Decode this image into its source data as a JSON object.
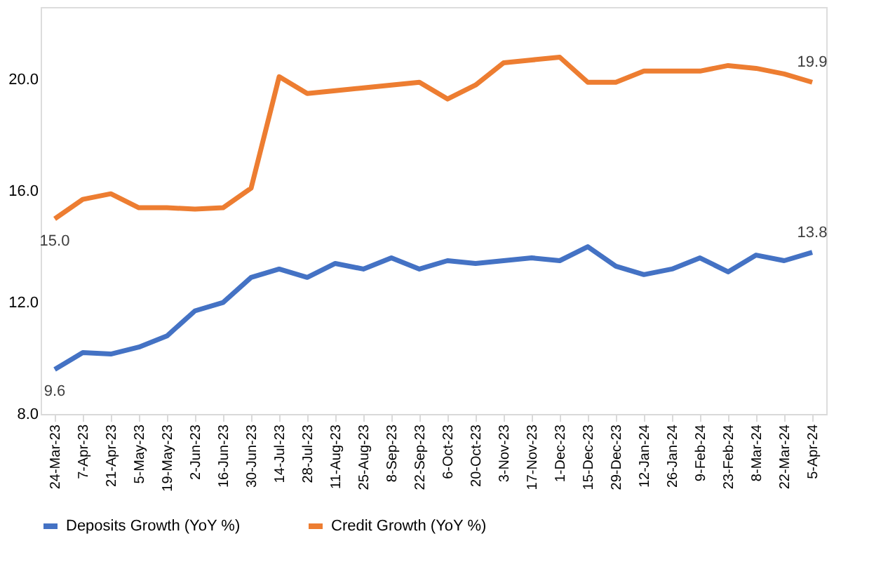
{
  "chart_data": {
    "type": "line",
    "categories": [
      "24-Mar-23",
      "7-Apr-23",
      "21-Apr-23",
      "5-May-23",
      "19-May-23",
      "2-Jun-23",
      "16-Jun-23",
      "30-Jun-23",
      "14-Jul-23",
      "28-Jul-23",
      "11-Aug-23",
      "25-Aug-23",
      "8-Sep-23",
      "22-Sep-23",
      "6-Oct-23",
      "20-Oct-23",
      "3-Nov-23",
      "17-Nov-23",
      "1-Dec-23",
      "15-Dec-23",
      "29-Dec-23",
      "12-Jan-24",
      "26-Jan-24",
      "9-Feb-24",
      "23-Feb-24",
      "8-Mar-24",
      "22-Mar-24",
      "5-Apr-24"
    ],
    "series": [
      {
        "name": "Deposits Growth (YoY %)",
        "color": "#4472c4",
        "values": [
          9.6,
          10.2,
          10.15,
          10.4,
          10.8,
          11.7,
          12.0,
          12.9,
          13.2,
          12.9,
          13.4,
          13.2,
          13.6,
          13.2,
          13.5,
          13.4,
          13.5,
          13.6,
          13.5,
          14.0,
          13.3,
          13.0,
          13.2,
          13.6,
          13.1,
          13.7,
          13.5,
          13.8
        ],
        "value_labels": [
          "9.6",
          null,
          null,
          null,
          null,
          null,
          null,
          null,
          null,
          null,
          null,
          null,
          null,
          null,
          null,
          null,
          null,
          null,
          null,
          null,
          null,
          null,
          null,
          null,
          null,
          null,
          null,
          "13.8"
        ]
      },
      {
        "name": "Credit Growth (YoY %)",
        "color": "#ed7d31",
        "values": [
          15.0,
          15.7,
          15.9,
          15.4,
          15.4,
          15.35,
          15.4,
          16.1,
          20.1,
          19.5,
          19.6,
          19.7,
          19.8,
          19.9,
          19.3,
          19.8,
          20.6,
          20.7,
          20.8,
          19.9,
          19.9,
          20.3,
          20.3,
          20.3,
          20.5,
          20.4,
          20.2,
          19.9
        ],
        "value_labels": [
          "15.0",
          null,
          null,
          null,
          null,
          null,
          null,
          null,
          null,
          null,
          null,
          null,
          null,
          null,
          null,
          null,
          null,
          null,
          null,
          null,
          null,
          null,
          null,
          null,
          null,
          null,
          null,
          "19.9"
        ]
      }
    ],
    "ylim": [
      8,
      22.6
    ],
    "yticks": [
      {
        "value": 8,
        "label": "8.0"
      },
      {
        "value": 12,
        "label": "12.0"
      },
      {
        "value": 16,
        "label": "16.0"
      },
      {
        "value": 20,
        "label": "20.0"
      }
    ],
    "grid": false,
    "legend": "bottom",
    "marker": "none",
    "line_style": "solid"
  }
}
